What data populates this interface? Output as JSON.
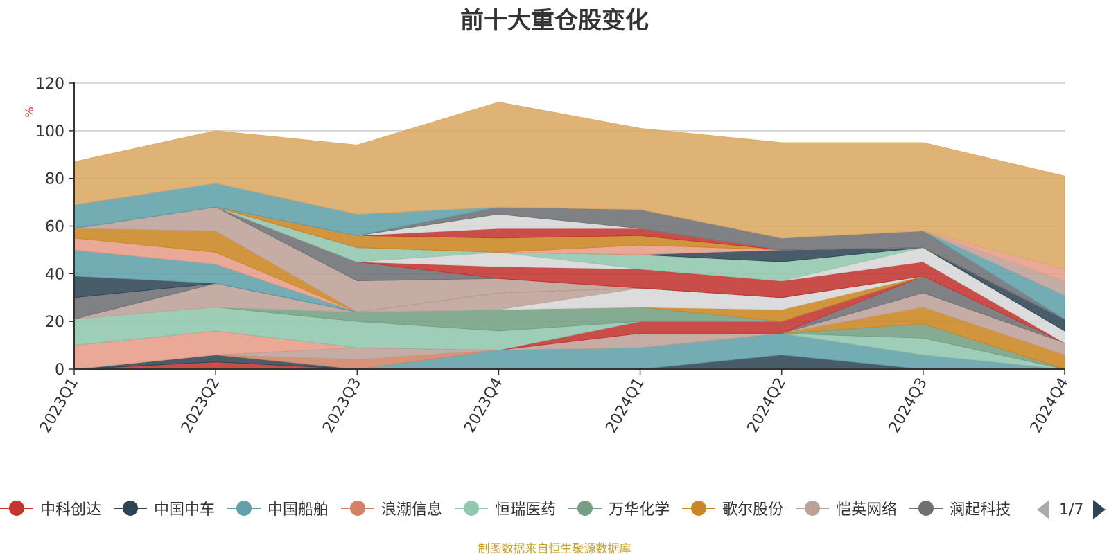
{
  "chart_data": {
    "type": "area",
    "title": "前十大重仓股变化",
    "ylabel": "%",
    "ylim": [
      0,
      120
    ],
    "yticks": [
      0,
      20,
      40,
      60,
      80,
      100,
      120
    ],
    "grid": true,
    "legend_position": "bottom",
    "categories": [
      "2023Q1",
      "2023Q2",
      "2023Q3",
      "2023Q4",
      "2024Q1",
      "2024Q2",
      "2024Q3",
      "2024Q4"
    ],
    "series": [
      {
        "name": "中科创达",
        "color": "#c23531",
        "values": [
          0,
          3,
          0,
          0,
          0,
          0,
          0,
          0
        ]
      },
      {
        "name": "中国中车",
        "color": "#2f4554",
        "values": [
          0,
          3,
          0,
          0,
          0,
          6,
          0,
          0
        ]
      },
      {
        "name": "中国船舶",
        "color": "#61a0a8",
        "values": [
          0,
          0,
          0,
          8,
          9,
          9,
          6,
          0
        ]
      },
      {
        "name": "浪潮信息",
        "color": "#d48265",
        "values": [
          0,
          0,
          4,
          0,
          0,
          0,
          0,
          0
        ]
      },
      {
        "name": "恒瑞医药",
        "color": "#91c7ae",
        "values": [
          0,
          0,
          0,
          0,
          0,
          0,
          7,
          0
        ]
      },
      {
        "name": "万华化学",
        "color": "#749f83",
        "values": [
          0,
          0,
          0,
          0,
          0,
          0,
          6,
          0
        ]
      },
      {
        "name": "歌尔股份",
        "color": "#ca8622",
        "values": [
          0,
          0,
          0,
          0,
          0,
          0,
          7,
          6
        ]
      },
      {
        "name": "恺英网络",
        "color": "#bda29a",
        "values": [
          0,
          0,
          5,
          0,
          6,
          0,
          6,
          5
        ]
      },
      {
        "name": "澜起科技",
        "color": "#6e7074",
        "values": [
          0,
          0,
          0,
          0,
          0,
          0,
          7,
          0
        ]
      }
    ],
    "extra_layers": [
      {
        "color": "#e69d87",
        "values": [
          10,
          10,
          0,
          0,
          0,
          0,
          0,
          0
        ]
      },
      {
        "color": "#c23531",
        "values": [
          0,
          0,
          0,
          0,
          5,
          5,
          0,
          0
        ]
      },
      {
        "color": "#91c7ae",
        "values": [
          11,
          10,
          11,
          8,
          0,
          0,
          0,
          0
        ]
      },
      {
        "color": "#749f83",
        "values": [
          0,
          0,
          4,
          9,
          6,
          0,
          0,
          0
        ]
      },
      {
        "color": "#ca8622",
        "values": [
          0,
          0,
          0,
          0,
          0,
          5,
          0,
          0
        ]
      },
      {
        "color": "#d7d7d7",
        "values": [
          0,
          0,
          0,
          0,
          8,
          5,
          0,
          0
        ]
      },
      {
        "color": "#bda29a",
        "values": [
          0,
          10,
          0,
          7,
          0,
          0,
          0,
          0
        ]
      },
      {
        "color": "#6e7074",
        "values": [
          9,
          0,
          0,
          0,
          0,
          0,
          0,
          0
        ]
      },
      {
        "color": "#2f4554",
        "values": [
          9,
          0,
          0,
          0,
          0,
          0,
          0,
          0
        ]
      },
      {
        "color": "#61a0a8",
        "values": [
          11,
          8,
          0,
          0,
          0,
          0,
          0,
          0
        ]
      },
      {
        "color": "#e69d87",
        "values": [
          5,
          5,
          0,
          0,
          0,
          0,
          0,
          0
        ]
      },
      {
        "color": "#ca8622",
        "values": [
          4,
          9,
          0,
          0,
          0,
          0,
          0,
          0
        ]
      },
      {
        "color": "#bda29a",
        "values": [
          0,
          10,
          13,
          6,
          0,
          0,
          0,
          0
        ]
      },
      {
        "color": "#6e7074",
        "values": [
          0,
          0,
          8,
          0,
          0,
          0,
          0,
          0
        ]
      },
      {
        "color": "#c23531",
        "values": [
          0,
          0,
          0,
          5,
          8,
          7,
          6,
          0
        ]
      },
      {
        "color": "#d7d7d7",
        "values": [
          0,
          0,
          0,
          6,
          0,
          0,
          6,
          5
        ]
      },
      {
        "color": "#91c7ae",
        "values": [
          0,
          0,
          6,
          0,
          6,
          8,
          0,
          0
        ]
      },
      {
        "color": "#2f4554",
        "values": [
          0,
          0,
          0,
          0,
          0,
          5,
          0,
          5
        ]
      },
      {
        "color": "#e69d87",
        "values": [
          0,
          0,
          0,
          0,
          4,
          0,
          0,
          0
        ]
      },
      {
        "color": "#ca8622",
        "values": [
          0,
          0,
          5,
          6,
          4,
          0,
          0,
          0
        ]
      },
      {
        "color": "#c23531",
        "values": [
          0,
          0,
          0,
          4,
          3,
          0,
          0,
          0
        ]
      },
      {
        "color": "#d7d7d7",
        "values": [
          0,
          0,
          0,
          6,
          0,
          0,
          0,
          0
        ]
      },
      {
        "color": "#6e7074",
        "values": [
          0,
          0,
          0,
          3,
          8,
          5,
          7,
          0
        ]
      },
      {
        "color": "#61a0a8",
        "values": [
          10,
          10,
          9,
          0,
          0,
          0,
          0,
          10
        ]
      },
      {
        "color": "#bda29a",
        "values": [
          0,
          0,
          0,
          0,
          0,
          0,
          0,
          6
        ]
      },
      {
        "color": "#e69d87",
        "values": [
          0,
          0,
          0,
          0,
          0,
          0,
          0,
          5
        ]
      },
      {
        "color": "#d9a862",
        "values": [
          18,
          22,
          29,
          44,
          34,
          40,
          37,
          39
        ]
      }
    ]
  },
  "legend": {
    "items": [
      {
        "label": "中科创达",
        "color": "#c23531"
      },
      {
        "label": "中国中车",
        "color": "#2f4554"
      },
      {
        "label": "中国船舶",
        "color": "#61a0a8"
      },
      {
        "label": "浪潮信息",
        "color": "#d48265"
      },
      {
        "label": "恒瑞医药",
        "color": "#91c7ae"
      },
      {
        "label": "万华化学",
        "color": "#749f83"
      },
      {
        "label": "歌尔股份",
        "color": "#ca8622"
      },
      {
        "label": "恺英网络",
        "color": "#bda29a"
      },
      {
        "label": "澜起科技",
        "color": "#6e7074"
      }
    ],
    "page_text": "1/7"
  },
  "footer": {
    "source": "制图数据来自恒生聚源数据库"
  }
}
